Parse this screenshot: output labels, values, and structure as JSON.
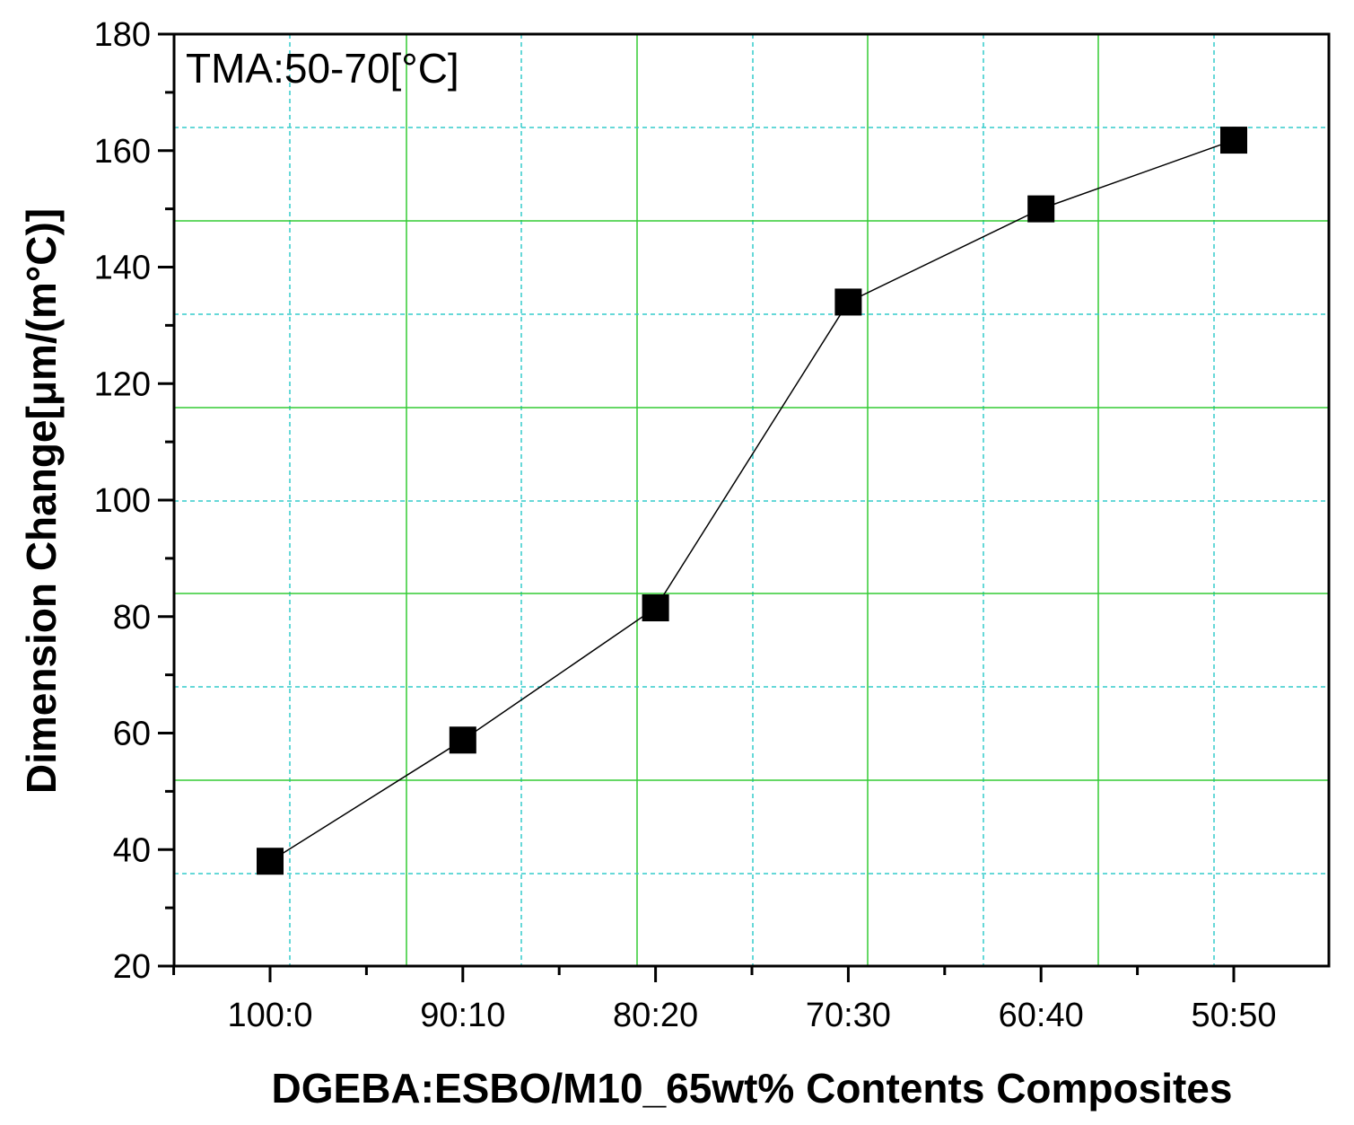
{
  "chart_data": {
    "type": "line",
    "annotation": "TMA:50-70[°C]",
    "xlabel": "DGEBA:ESBO/M10_65wt% Contents Composites",
    "ylabel": "Dimension Change[μm/(m°C)]",
    "categories": [
      "100:0",
      "90:10",
      "80:20",
      "70:30",
      "60:40",
      "50:50"
    ],
    "series": [
      {
        "values": [
          38,
          58.8,
          81.5,
          134,
          150,
          161.8
        ]
      }
    ],
    "ylim": [
      20,
      180
    ],
    "yticks": [
      20,
      40,
      60,
      80,
      100,
      120,
      140,
      160,
      180
    ],
    "grid": true,
    "marker": "square",
    "colors": {
      "line": "#000000",
      "marker": "#000000",
      "grid_major": "#33cc33",
      "grid_minor": "#33cccc"
    }
  }
}
